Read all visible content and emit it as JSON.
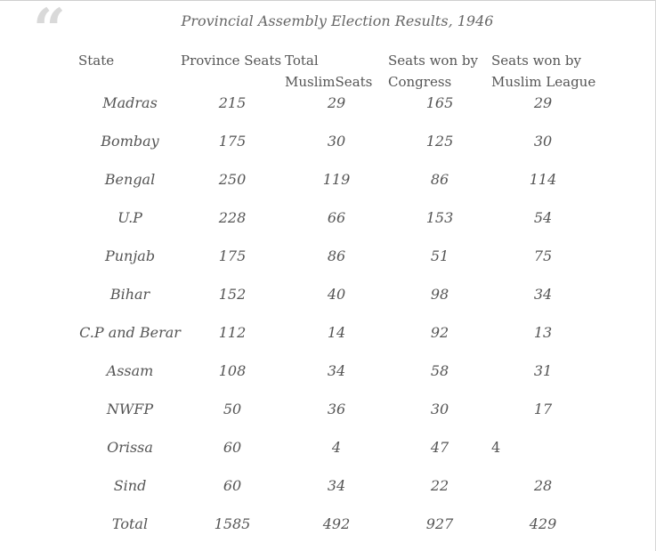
{
  "caption": "Provincial Assembly Election Results, 1946",
  "quote_glyph": "“",
  "headers": {
    "state": "State",
    "province_seats": "Province Seats",
    "muslim_seats_line1": "Total",
    "muslim_seats_line2": "MuslimSeats",
    "congress_line1": "Seats won by",
    "congress_line2": "Congress",
    "league_line1": "Seats won by",
    "league_line2": "Muslim League"
  },
  "rows": [
    {
      "state": "Madras",
      "province": "215",
      "muslim": "29",
      "congress": "165",
      "league": "29"
    },
    {
      "state": "Bombay",
      "province": "175",
      "muslim": "30",
      "congress": "125",
      "league": "30"
    },
    {
      "state": "Bengal",
      "province": "250",
      "muslim": "119",
      "congress": "86",
      "league": "114"
    },
    {
      "state": "U.P",
      "province": "228",
      "muslim": "66",
      "congress": "153",
      "league": "54"
    },
    {
      "state": "Punjab",
      "province": "175",
      "muslim": "86",
      "congress": "51",
      "league": "75"
    },
    {
      "state": "Bihar",
      "province": "152",
      "muslim": "40",
      "congress": "98",
      "league": "34"
    },
    {
      "state": "C.P and Berar",
      "province": "112",
      "muslim": "14",
      "congress": "92",
      "league": "13"
    },
    {
      "state": "Assam",
      "province": "108",
      "muslim": "34",
      "congress": "58",
      "league": "31"
    },
    {
      "state": "NWFP",
      "province": "50",
      "muslim": "36",
      "congress": "30",
      "league": "17"
    },
    {
      "state": "Orissa",
      "province": "60",
      "muslim": "4",
      "congress": "47",
      "league": "4"
    },
    {
      "state": "Sind",
      "province": "60",
      "muslim": "34",
      "congress": "22",
      "league": "28"
    },
    {
      "state": "Total",
      "province": "1585",
      "muslim": "492",
      "congress": "927",
      "league": "429"
    }
  ]
}
